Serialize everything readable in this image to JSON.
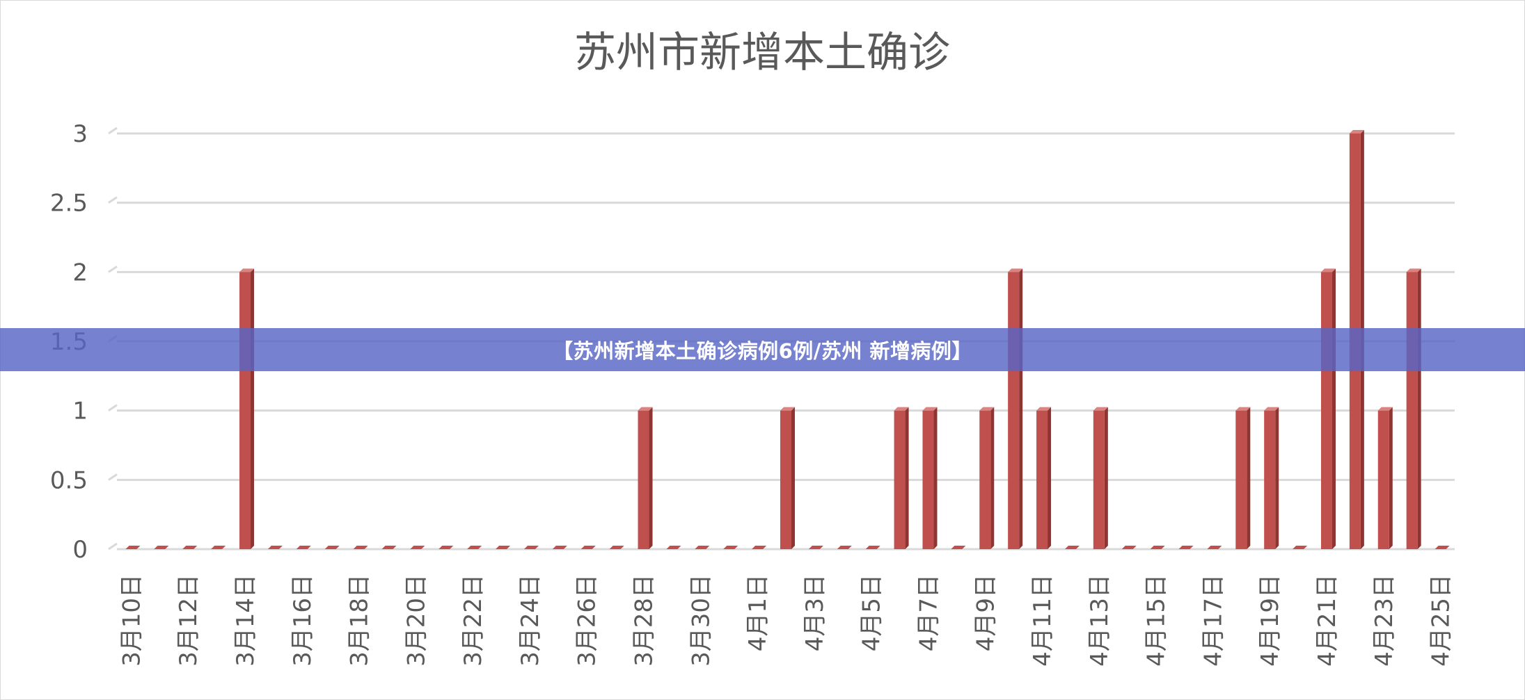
{
  "banner": {
    "text": "【苏州新增本土确诊病例6例/苏州 新增病例】"
  },
  "chart_data": {
    "type": "bar",
    "title": "苏州市新增本土确诊",
    "xlabel": "",
    "ylabel": "",
    "ylim": [
      0,
      3
    ],
    "yticks": [
      "0",
      "0.5",
      "1",
      "1.5",
      "2",
      "2.5",
      "3"
    ],
    "grid": true,
    "legend": "none",
    "bar_color": "#c0504d",
    "categories": [
      "3月10日",
      "3月11日",
      "3月12日",
      "3月13日",
      "3月14日",
      "3月15日",
      "3月16日",
      "3月17日",
      "3月18日",
      "3月19日",
      "3月20日",
      "3月21日",
      "3月22日",
      "3月23日",
      "3月24日",
      "3月25日",
      "3月26日",
      "3月27日",
      "3月28日",
      "3月29日",
      "3月30日",
      "3月31日",
      "4月1日",
      "4月2日",
      "4月3日",
      "4月4日",
      "4月5日",
      "4月6日",
      "4月7日",
      "4月8日",
      "4月9日",
      "4月10日",
      "4月11日",
      "4月12日",
      "4月13日",
      "4月14日",
      "4月15日",
      "4月16日",
      "4月17日",
      "4月18日",
      "4月19日",
      "4月20日",
      "4月21日",
      "4月22日",
      "4月23日",
      "4月24日",
      "4月25日"
    ],
    "values": [
      0,
      0,
      0,
      0,
      2,
      0,
      0,
      0,
      0,
      0,
      0,
      0,
      0,
      0,
      0,
      0,
      0,
      0,
      1,
      0,
      0,
      0,
      0,
      1,
      0,
      0,
      0,
      1,
      1,
      0,
      1,
      2,
      1,
      0,
      1,
      0,
      0,
      0,
      0,
      1,
      1,
      0,
      2,
      3,
      1,
      2,
      0
    ],
    "shown_tick_labels": [
      "3月10日",
      "3月12日",
      "3月14日",
      "3月16日",
      "3月18日",
      "3月20日",
      "3月22日",
      "3月24日",
      "3月26日",
      "3月28日",
      "3月30日",
      "4月1日",
      "4月3日",
      "4月5日",
      "4月7日",
      "4月9日",
      "4月11日",
      "4月13日",
      "4月15日",
      "4月17日",
      "4月19日",
      "4月21日",
      "4月23日",
      "4月25日"
    ]
  }
}
